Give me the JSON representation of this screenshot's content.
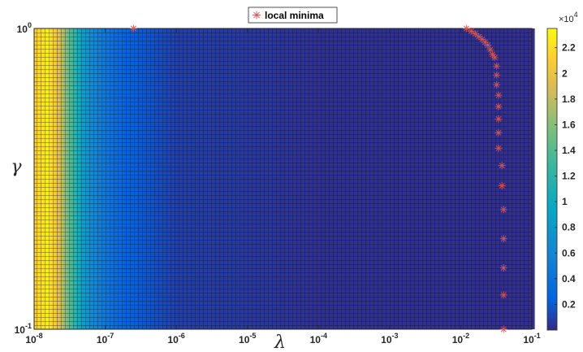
{
  "chart_data": {
    "type": "heatmap",
    "title": "",
    "xlabel": "λ",
    "ylabel": "γ",
    "x_scale": "log",
    "y_scale": "log",
    "xlim": [
      1e-08,
      0.1
    ],
    "ylim": [
      0.1,
      1
    ],
    "x_ticks": [
      {
        "base": "10",
        "exp": "-8"
      },
      {
        "base": "10",
        "exp": "-7"
      },
      {
        "base": "10",
        "exp": "-6"
      },
      {
        "base": "10",
        "exp": "-5"
      },
      {
        "base": "10",
        "exp": "-4"
      },
      {
        "base": "10",
        "exp": "-3"
      },
      {
        "base": "10",
        "exp": "-2"
      },
      {
        "base": "10",
        "exp": "-1"
      }
    ],
    "y_ticks": [
      {
        "base": "10",
        "exp": "-1"
      },
      {
        "base": "10",
        "exp": "0"
      }
    ],
    "colorbar": {
      "range": [
        0,
        23500
      ],
      "ticks": [
        "0.2",
        "0.4",
        "0.6",
        "0.8",
        "1",
        "1.2",
        "1.4",
        "1.6",
        "1.8",
        "2",
        "2.2"
      ],
      "multiplier": {
        "base": "×10",
        "exp": "4"
      },
      "colormap": "parula"
    },
    "heat_profile_along_lambda": [
      {
        "lambda": 1e-08,
        "value": 21000
      },
      {
        "lambda": 1.6e-08,
        "value": 23000
      },
      {
        "lambda": 2.5e-08,
        "value": 18000
      },
      {
        "lambda": 4e-08,
        "value": 11000
      },
      {
        "lambda": 6e-08,
        "value": 7000
      },
      {
        "lambda": 1e-07,
        "value": 4500
      },
      {
        "lambda": 2e-07,
        "value": 2500
      },
      {
        "lambda": 1e-06,
        "value": 900
      },
      {
        "lambda": 0.0001,
        "value": 300
      },
      {
        "lambda": 0.1,
        "value": 200
      }
    ],
    "series": [
      {
        "name": "local minima",
        "marker": "asterisk",
        "color": "#d9534f",
        "points": [
          {
            "lambda": 2.5e-07,
            "gamma": 1.0
          },
          {
            "lambda": 0.012,
            "gamma": 1.0
          },
          {
            "lambda": 0.014,
            "gamma": 0.98
          },
          {
            "lambda": 0.016,
            "gamma": 0.96
          },
          {
            "lambda": 0.018,
            "gamma": 0.94
          },
          {
            "lambda": 0.02,
            "gamma": 0.92
          },
          {
            "lambda": 0.022,
            "gamma": 0.9
          },
          {
            "lambda": 0.024,
            "gamma": 0.88
          },
          {
            "lambda": 0.026,
            "gamma": 0.85
          },
          {
            "lambda": 0.028,
            "gamma": 0.82
          },
          {
            "lambda": 0.03,
            "gamma": 0.8
          },
          {
            "lambda": 0.032,
            "gamma": 0.75
          },
          {
            "lambda": 0.032,
            "gamma": 0.7
          },
          {
            "lambda": 0.032,
            "gamma": 0.65
          },
          {
            "lambda": 0.034,
            "gamma": 0.6
          },
          {
            "lambda": 0.034,
            "gamma": 0.55
          },
          {
            "lambda": 0.034,
            "gamma": 0.5
          },
          {
            "lambda": 0.034,
            "gamma": 0.45
          },
          {
            "lambda": 0.034,
            "gamma": 0.4
          },
          {
            "lambda": 0.038,
            "gamma": 0.35
          },
          {
            "lambda": 0.038,
            "gamma": 0.3
          },
          {
            "lambda": 0.04,
            "gamma": 0.25
          },
          {
            "lambda": 0.04,
            "gamma": 0.2
          },
          {
            "lambda": 0.04,
            "gamma": 0.16
          },
          {
            "lambda": 0.04,
            "gamma": 0.13
          },
          {
            "lambda": 0.04,
            "gamma": 0.1
          }
        ]
      }
    ],
    "legend": {
      "position": "top-center",
      "label": "local minima"
    },
    "grid": true
  }
}
